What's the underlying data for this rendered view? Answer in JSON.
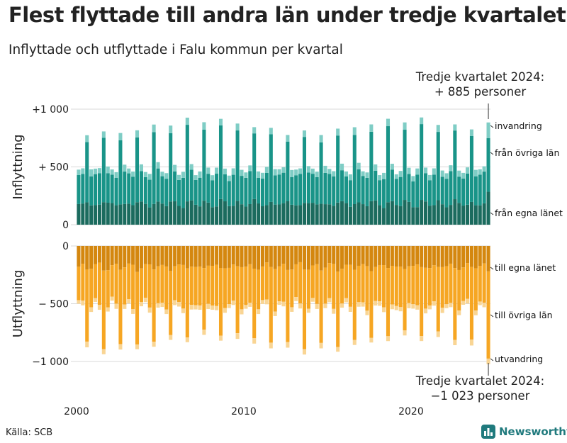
{
  "title": "Flest flyttade till andra län under tredje kvartalet",
  "subtitle": "Inflyttade och utflyttade i Falu kommun per kvartal",
  "annotation_top": {
    "line1": "Tredje kvartalet 2024:",
    "line2": "+  885 personer"
  },
  "annotation_bottom": {
    "line1": "Tredje kvartalet 2024:",
    "line2": "−1 023 personer"
  },
  "source": "Källa: SCB",
  "brand": "Newsworthy",
  "colors": {
    "in_local": "#1b6b5e",
    "in_other": "#199488",
    "in_abroad": "#7fcdc5",
    "out_local": "#d4870f",
    "out_other": "#f6a623",
    "out_abroad": "#f9d594",
    "grid": "#d8d8d8",
    "brand": "#207a7d"
  },
  "chart_data": [
    {
      "type": "bar",
      "stacked": true,
      "ylabel": "Inflyttning",
      "ylim": [
        0,
        1000
      ],
      "yticks": [
        "0",
        "+ 500",
        "+1 000"
      ],
      "x_ticks": [
        "2000",
        "2010",
        "2020"
      ],
      "x_start": "2000 Q1",
      "x_end": "2024 Q3",
      "series": [
        {
          "name": "från egna länet",
          "quarterly_pattern": [
            170,
            165,
            200,
            190
          ],
          "last_value": 285
        },
        {
          "name": "från övriga län",
          "quarterly_pattern": [
            240,
            260,
            590,
            255
          ],
          "last_value": 465
        },
        {
          "name": "invandring",
          "quarterly_pattern": [
            45,
            50,
            60,
            55
          ],
          "last_value": 135
        }
      ],
      "last_total": 885
    },
    {
      "type": "bar",
      "stacked": true,
      "ylabel": "Utflyttning",
      "ylim": [
        -1000,
        0
      ],
      "yticks": [
        "0",
        "− 500",
        "−1 000"
      ],
      "x_ticks": [
        "2000",
        "2010",
        "2020"
      ],
      "x_start": "2000 Q1",
      "x_end": "2024 Q3",
      "series": [
        {
          "name": "till egna länet",
          "quarterly_pattern": [
            -170,
            -160,
            -200,
            -190
          ],
          "last_value": -220
        },
        {
          "name": "till övriga län",
          "quarterly_pattern": [
            -310,
            -350,
            -610,
            -330
          ],
          "last_value": -755
        },
        {
          "name": "utvandring",
          "quarterly_pattern": [
            -35,
            -40,
            -45,
            -40
          ],
          "last_value": -48
        }
      ],
      "last_total": -1023
    }
  ]
}
